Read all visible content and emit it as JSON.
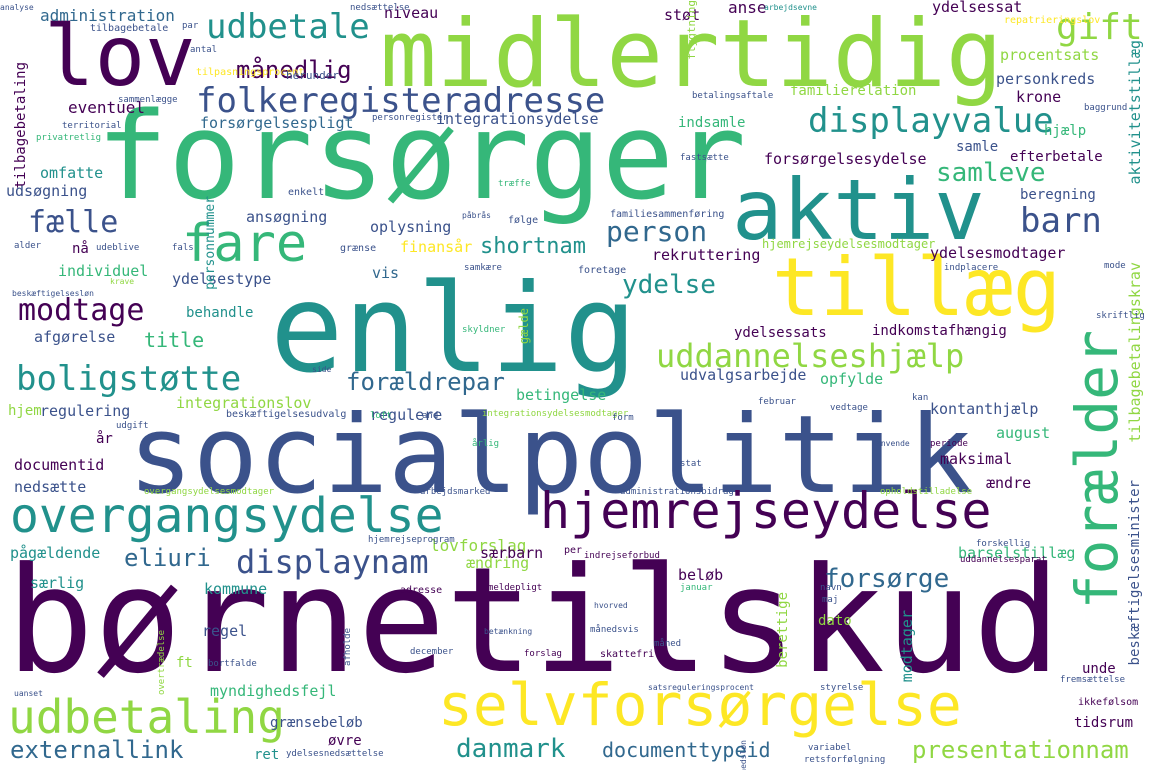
{
  "palette": {
    "background": "#ffffff",
    "purple": "#440154",
    "indigo": "#3b528b",
    "blue": "#31688e",
    "teal": "#21918c",
    "green": "#35b779",
    "lime": "#90d743",
    "yellow": "#fde725"
  },
  "words": {
    "bornetilskud": "børnetilskud",
    "socialpolitik": "socialpolitik",
    "forsorger": "forsørger",
    "enlig": "enlig",
    "midlertidig": "midlertidig",
    "aktiv": "aktiv",
    "lov": "lov",
    "tillaeg": "tillæg",
    "selvforsorgelse": "selvforsørgelse",
    "hjemrejseydelse": "hjemrejseydelse",
    "overgangsydelse": "overgangsydelse",
    "foraelder": "forælder",
    "fare": "fare",
    "udbetaling": "udbetaling",
    "folkeregisteradresse": "folkeregisteradresse",
    "displayvalue": "displayvalue",
    "udbetale": "udbetale",
    "barn": "barn",
    "boligstotte": "boligstøtte",
    "displaynam": "displaynam",
    "uddannelseshjaelp": "uddannelseshjælp",
    "modtage": "modtage",
    "gift": "gift",
    "fælle": "fælle",
    "person": "person",
    "forsorge": "forsørge",
    "ydelse": "ydelse",
    "foraeldrepar": "forældrepar",
    "samleve": "samleve",
    "externallink": "externallink",
    "presentationnam": "presentationnam",
    "danmark": "danmark",
    "maanedlig": "månedlig",
    "shortnam": "shortnam",
    "eliuri": "eliuri",
    "documenttypeid": "documenttypeid",
    "title": "title",
    "lovforslag": "lovforslag",
    "forsorgelsesydelse": "forsørgelsesydelse",
    "integrationssydelse": "integrationsydelse",
    "forsorgelsespligt": "forsørgelsespligt",
    "eventuel": "eventuel",
    "administration": "administration",
    "niveau": "niveau",
    "stot": "støt",
    "anse": "anse",
    "ydelsessat": "ydelsessat",
    "procentsats": "procentsats",
    "personkreds": "personkreds",
    "krone": "krone",
    "familierelation": "familierelation",
    "omfatte": "omfatte",
    "udsogning": "udsøgning",
    "ansogning": "ansøgning",
    "oplysning": "oplysning",
    "rekruttering": "rekruttering",
    "finansaar": "finansår",
    "individuel": "individuel",
    "ydelsestype": "ydelsestype",
    "vis": "vis",
    "behandle": "behandle",
    "afgorelse": "afgørelse",
    "regulere": "regulere",
    "regulering": "regulering",
    "hjem": "hjem",
    "integrationslov": "integrationslov",
    "betingelse": "betingelse",
    "udvalgsarbejde": "udvalgsarbejde",
    "opfylde": "opfylde",
    "ydelsessats": "ydelsessats",
    "indkomstafhaengig": "indkomstafhængig",
    "kontanthjaelp": "kontanthjælp",
    "august": "august",
    "maksimal": "maksimal",
    "aendre": "ændre",
    "documentid": "documentid",
    "nedsaette": "nedsætte",
    "aar": "år",
    "paagaeldende": "pågældende",
    "saerlig": "særlig",
    "saerbarn": "særbarn",
    "aendring": "ændring",
    "barselstillaeg": "barselstillæg",
    "beloeb": "beløb",
    "kommune": "kommune",
    "regel": "regel",
    "myndighedsfejl": "myndighedsfejl",
    "graensebeloeb": "grænsebeløb",
    "ovre": "øvre",
    "ret": "ret",
    "tidsrum": "tidsrum",
    "unde": "unde",
    "modtager": "modtager",
    "beregning": "beregning",
    "efterbetale": "efterbetale",
    "hjaelp": "hjælp",
    "samle": "samle",
    "ydelsesmodtager": "ydelsesmodtager",
    "indsamle": "indsamle",
    "dato": "dato",
    "ft": "ft",
    "hjemrejseydelsesmodtager": "hjemrejseydelsesmodtager",
    "tilbagebetaling": "tilbagebetaling",
    "personnummer": "personnummer",
    "aktivitetstillaeg": "aktivitetstillæg",
    "tilbagebetalingskrav": "tilbagebetalingskrav",
    "beskaeftigelsesminister": "beskæftigelsesminister",
    "berettige": "berettige",
    "gaelde": "gælde",
    "flygtning": "flygtning",
    "tilbagebetale": "tilbagebetale",
    "tilpasningsprocent": "tilpasningsprocent",
    "repatrieringslov": "repatrieringslov",
    "sammenlaegge": "sammenlægge",
    "territorial": "territorial",
    "privatretlig": "privatretlig",
    "herunder": "herunder",
    "antal": "antal",
    "par": "par",
    "analyse": "analyse",
    "nedsaettelse": "nedsættelse",
    "arbejdsevne": "arbejdsevne",
    "betalingsaftale": "betalingsaftale",
    "personregister": "personregister",
    "baggrund": "baggrund",
    "fastsaette": "fastsætte",
    "traeffe": "træffe",
    "enkelt": "enkelt",
    "familiesammenfoering": "familiesammenføring",
    "foelge": "følge",
    "paabraas": "påbrås",
    "graense": "grænse",
    "samkaere": "samkære",
    "foretage": "foretage",
    "indplacere": "indplacere",
    "mode": "mode",
    "nudeblive": "nå",
    "udeblive": "udeblive",
    "alder": "alder",
    "fals": "fals",
    "krave": "krave",
    "beskaeftigelsesloen": "beskæftigelsesløn",
    "skyldner": "skyldner",
    "skriftlig": "skriftlig",
    "side": "side",
    "beskaeftigelsesudvalg": "beskæftigelsesudvalg",
    "loft": "loft",
    "and": "and",
    "integrationsydelsesmodtager": "integrationsydelsesmodtager",
    "form": "form",
    "februar": "februar",
    "vedtage": "vedtage",
    "kan": "kan",
    "udgift": "udgift",
    "aarlig": "årlig",
    "stat": "stat",
    "anvende": "anvende",
    "periode": "periode",
    "overgangsydelsesmodtager": "overgangsydelsesmodtager",
    "arbejdsmarked": "arbejdsmarked",
    "administrationsbidrag": "administrationsbidrag",
    "opholdstilladelse": "opholdstilladelse",
    "hjemrejseprogram": "hjemrejseprogram",
    "indrejseforbud": "indrejseforbud",
    "uddannelsesparat": "uddannelsesparat",
    "forskellig": "forskellig",
    "per": "per",
    "adresse": "adresse",
    "meldepligt": "meldepligt",
    "januar": "januar",
    "hvorved": "hvorved",
    "navn": "navn",
    "maj": "maj",
    "betaenkning": "betænkning",
    "maanedsvis": "månedsvis",
    "maaned": "måned",
    "december": "december",
    "forslag": "forslag",
    "skattefri": "skattefri",
    "afholde": "afholde",
    "bortfalde": "bortfalde",
    "overtraedelse": "overtrædelse",
    "satsreguleringsprocent": "satsreguleringsprocent",
    "styrelse": "styrelse",
    "fremsaettelse": "fremsættelse",
    "ikkefoelsom": "ikkefølsom",
    "variabel": "variabel",
    "retsforfoelgning": "retsforfølgning",
    "ydelsesnedsaettelse": "ydelsesnedsættelse",
    "uanset": "uanset",
    "maanedsloen": "månedsløn",
    "arbejdsevne2": "arbejdsevne"
  }
}
